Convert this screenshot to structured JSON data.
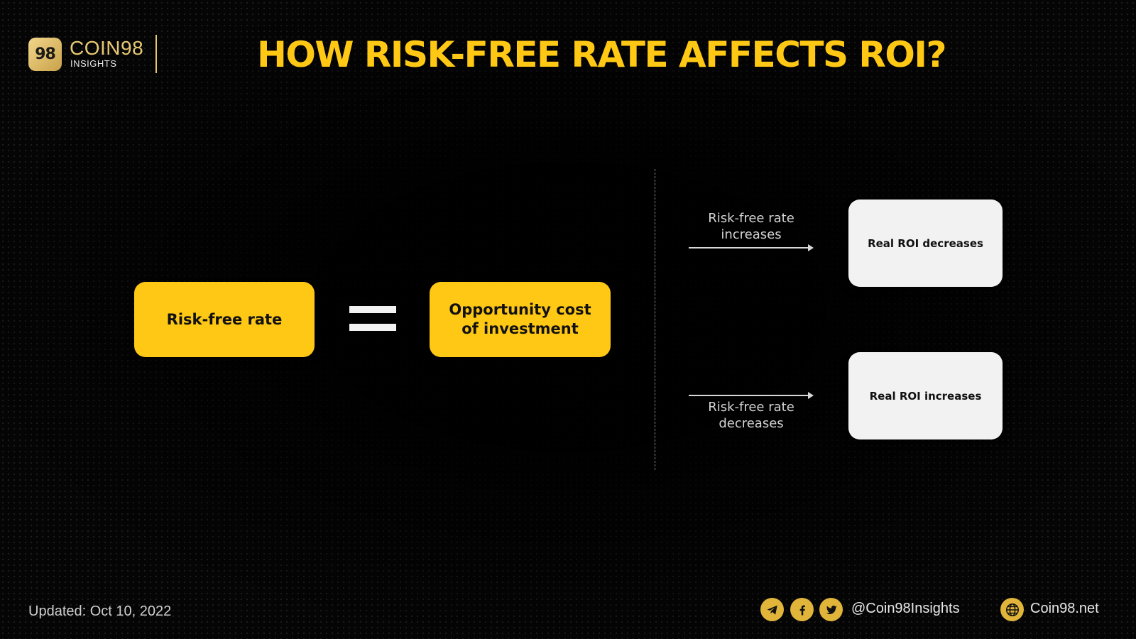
{
  "header": {
    "logo_text": "98",
    "brand_name": "COIN98",
    "brand_sub": "INSIGHTS",
    "title": "HOW RISK-FREE RATE AFFECTS ROI?"
  },
  "diagram": {
    "left_box": "Risk-free rate",
    "right_box": "Opportunity cost of investment",
    "top_arrow_label": "Risk-free rate increases",
    "top_result": "Real ROI decreases",
    "bottom_arrow_label": "Risk-free rate decreases",
    "bottom_result": "Real ROI increases"
  },
  "footer": {
    "updated": "Updated: Oct 10, 2022",
    "handle": "@Coin98Insights",
    "site": "Coin98.net",
    "icons": [
      "telegram-icon",
      "facebook-icon",
      "twitter-icon",
      "globe-icon"
    ]
  },
  "colors": {
    "accent_yellow": "#ffc814",
    "brand_gold": "#e8c873",
    "background": "#050505",
    "box_white": "#f2f2f2"
  }
}
